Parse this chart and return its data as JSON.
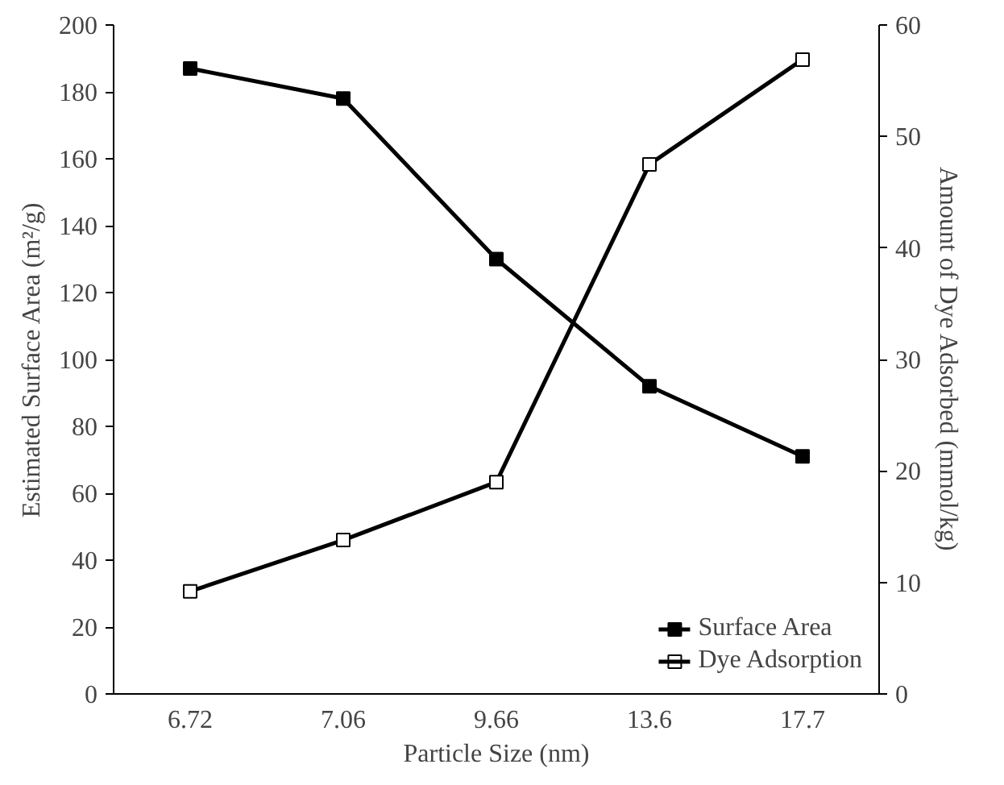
{
  "chart_data": {
    "type": "line",
    "xlabel": "Particle Size (nm)",
    "ylabel": "Estimated Surface Area (m²/g)",
    "y2label": "Amount of Dye Adsorbed (mmol/kg)",
    "categories": [
      "6.72",
      "7.06",
      "9.66",
      "13.6",
      "17.7"
    ],
    "series": [
      {
        "name": "Surface Area",
        "color": "#000000",
        "values": [
          187,
          178,
          130,
          92,
          71
        ]
      },
      {
        "name": "Dye Adsorption",
        "color": "#000000",
        "axis": "y2",
        "values": [
          9.2,
          13.8,
          19,
          47.5,
          56.9
        ]
      }
    ],
    "ylim": [
      0,
      200
    ],
    "yticks": [
      0,
      20,
      40,
      60,
      80,
      100,
      120,
      140,
      160,
      180,
      200
    ],
    "y2lim": [
      0,
      60
    ],
    "y2ticks": [
      0,
      10,
      20,
      30,
      40,
      50,
      60
    ],
    "grid": false,
    "legend": "bottom right",
    "marker": "square",
    "line_style": "solid"
  }
}
